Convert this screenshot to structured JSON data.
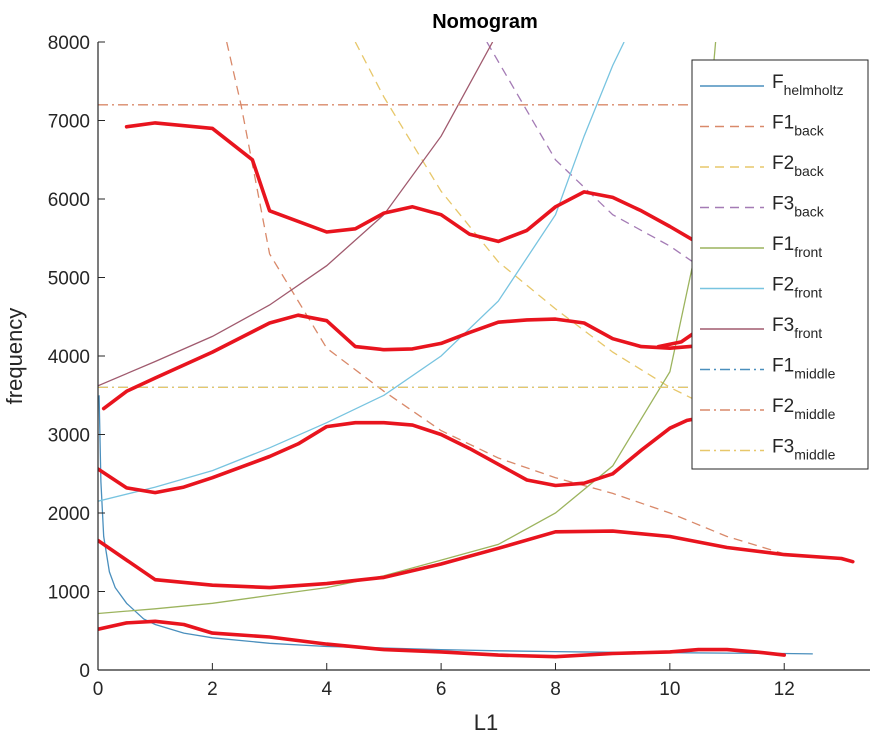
{
  "chart_data": {
    "type": "line",
    "title": "Nomogram",
    "xlabel": "L1",
    "ylabel": "frequency",
    "xlim": [
      0,
      13.5
    ],
    "ylim": [
      0,
      8000
    ],
    "xticks": [
      0,
      2,
      4,
      6,
      8,
      10,
      12
    ],
    "yticks": [
      0,
      1000,
      2000,
      3000,
      4000,
      5000,
      6000,
      7000,
      8000
    ],
    "grid": false,
    "legend_position": "top-right",
    "legend": [
      {
        "base": "F",
        "sub": "helmholtz",
        "color": "#4a8fbd",
        "dash": "solid"
      },
      {
        "base": "F1",
        "sub": "back",
        "color": "#d9896a",
        "dash": "dashed"
      },
      {
        "base": "F2",
        "sub": "back",
        "color": "#e7c76a",
        "dash": "dashed"
      },
      {
        "base": "F3",
        "sub": "back",
        "color": "#a47bb5",
        "dash": "dashed"
      },
      {
        "base": "F1",
        "sub": "front",
        "color": "#9cb45e",
        "dash": "solid"
      },
      {
        "base": "F2",
        "sub": "front",
        "color": "#78c4e0",
        "dash": "solid"
      },
      {
        "base": "F3",
        "sub": "front",
        "color": "#a05a6e",
        "dash": "solid"
      },
      {
        "base": "F1",
        "sub": "middle",
        "color": "#4a8fbd",
        "dash": "dashdot"
      },
      {
        "base": "F2",
        "sub": "middle",
        "color": "#d9896a",
        "dash": "dashdot"
      },
      {
        "base": "F3",
        "sub": "middle",
        "color": "#e7c76a",
        "dash": "dashdot"
      }
    ],
    "series": [
      {
        "color": "#4a8fbd",
        "dash": "solid",
        "x": [
          0.02,
          0.05,
          0.1,
          0.2,
          0.3,
          0.5,
          0.8,
          1,
          1.5,
          2,
          3,
          4,
          5,
          6,
          7,
          8,
          9,
          10,
          11,
          12,
          12.5
        ],
        "y": [
          3500,
          2400,
          1700,
          1250,
          1050,
          850,
          650,
          580,
          470,
          410,
          340,
          300,
          280,
          260,
          245,
          235,
          225,
          220,
          215,
          210,
          205
        ]
      },
      {
        "color": "#d9896a",
        "dash": "dashed",
        "x": [
          2.25,
          2.5,
          3,
          4,
          5,
          6,
          7,
          8,
          9,
          10,
          11,
          12
        ],
        "y": [
          8000,
          7200,
          5300,
          4100,
          3550,
          3050,
          2700,
          2450,
          2250,
          2000,
          1700,
          1480
        ]
      },
      {
        "color": "#e7c76a",
        "dash": "dashed",
        "x": [
          4.5,
          5,
          6,
          7,
          8,
          9,
          10,
          10.5
        ],
        "y": [
          8000,
          7300,
          6100,
          5200,
          4600,
          4050,
          3600,
          3420
        ]
      },
      {
        "color": "#a47bb5",
        "dash": "dashed",
        "x": [
          6.8,
          8,
          9,
          10,
          10.5
        ],
        "y": [
          8000,
          6500,
          5800,
          5400,
          5150
        ]
      },
      {
        "color": "#9cb45e",
        "dash": "solid",
        "x": [
          0,
          1,
          2,
          3,
          4,
          5,
          6,
          7,
          8,
          9,
          10,
          10.5,
          10.8
        ],
        "y": [
          720,
          780,
          850,
          950,
          1050,
          1200,
          1400,
          1600,
          2000,
          2600,
          3800,
          5500,
          8000
        ]
      },
      {
        "color": "#78c4e0",
        "dash": "solid",
        "x": [
          0,
          1,
          2,
          3,
          4,
          5,
          6,
          7,
          8,
          8.5,
          9,
          9.2
        ],
        "y": [
          2150,
          2330,
          2540,
          2830,
          3150,
          3500,
          4000,
          4700,
          5800,
          6800,
          7700,
          8000
        ]
      },
      {
        "color": "#a05a6e",
        "dash": "solid",
        "x": [
          0,
          1,
          2,
          3,
          4,
          5,
          6,
          6.9
        ],
        "y": [
          3620,
          3930,
          4250,
          4650,
          5150,
          5800,
          6800,
          8000
        ]
      },
      {
        "color": "#4a8fbd",
        "dash": "dashdot",
        "x": [
          0,
          13.5
        ],
        "y": [
          3600,
          3600
        ]
      },
      {
        "color": "#d9896a",
        "dash": "dashdot",
        "x": [
          0,
          13.5
        ],
        "y": [
          7200,
          7200
        ]
      },
      {
        "color": "#e7c76a",
        "dash": "dashdot",
        "x": [
          0,
          13.5
        ],
        "y": [
          3600,
          3600
        ]
      }
    ],
    "annotations": [
      {
        "color": "#e8141e",
        "x": [
          0.5,
          1,
          2,
          2.7,
          3,
          4,
          4.5,
          5,
          5.5,
          6,
          6.5,
          7,
          7.5,
          8,
          8.5,
          9,
          9.5,
          10,
          10.4
        ],
        "y": [
          6920,
          6970,
          6900,
          6500,
          5850,
          5580,
          5620,
          5820,
          5900,
          5800,
          5550,
          5460,
          5600,
          5900,
          6090,
          6020,
          5850,
          5650,
          5480
        ]
      },
      {
        "color": "#e8141e",
        "x": [
          0.1,
          0.5,
          1,
          2,
          3,
          3.5,
          4,
          4.5,
          5,
          5.5,
          6,
          6.5,
          7,
          7.5,
          8,
          8.5,
          9,
          9.5,
          10,
          10.5
        ],
        "y": [
          3330,
          3550,
          3720,
          4050,
          4420,
          4520,
          4450,
          4120,
          4080,
          4090,
          4160,
          4300,
          4430,
          4460,
          4470,
          4420,
          4220,
          4120,
          4100,
          4130
        ]
      },
      {
        "color": "#e8141e",
        "x": [
          9.8,
          10.2,
          10.4,
          10.5,
          10.6
        ],
        "y": [
          4120,
          4180,
          4280,
          4430,
          4620
        ]
      },
      {
        "color": "#e8141e",
        "x": [
          0,
          0.5,
          1,
          1.5,
          2,
          3,
          3.5,
          4,
          4.5,
          5,
          5.5,
          6,
          6.5,
          7,
          7.5,
          8,
          8.5,
          9,
          9.5,
          10,
          10.3,
          10.6
        ],
        "y": [
          2560,
          2320,
          2260,
          2330,
          2450,
          2720,
          2880,
          3100,
          3150,
          3150,
          3120,
          3000,
          2820,
          2620,
          2420,
          2350,
          2380,
          2500,
          2800,
          3080,
          3180,
          3220
        ]
      },
      {
        "color": "#e8141e",
        "x": [
          0,
          0.5,
          1,
          2,
          3,
          4,
          5,
          6,
          7,
          8,
          9,
          10,
          11,
          12,
          13,
          13.2
        ],
        "y": [
          1650,
          1400,
          1150,
          1080,
          1050,
          1100,
          1180,
          1350,
          1550,
          1760,
          1770,
          1700,
          1560,
          1470,
          1420,
          1380
        ]
      },
      {
        "color": "#e8141e",
        "x": [
          0,
          0.5,
          1,
          1.5,
          2,
          3,
          4,
          5,
          6,
          7,
          8,
          9,
          10,
          10.5,
          11,
          11.5,
          12
        ],
        "y": [
          520,
          600,
          620,
          580,
          470,
          420,
          330,
          260,
          230,
          190,
          170,
          210,
          230,
          260,
          260,
          230,
          190
        ]
      }
    ]
  }
}
